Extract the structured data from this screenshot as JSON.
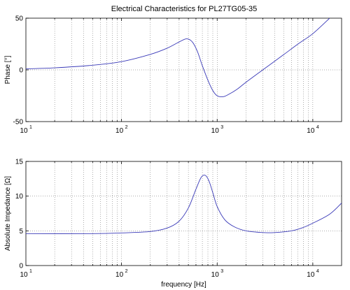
{
  "figure": {
    "title": "Electrical Characteristics for PL27TG05-35"
  },
  "chart_data": [
    {
      "type": "line",
      "ylabel": "Phase [°]",
      "xlabel": "",
      "xscale": "log",
      "xlim": [
        10,
        20000
      ],
      "ylim": [
        -50,
        50
      ],
      "yticks": [
        -50,
        0,
        50
      ],
      "xtick_labels": [
        {
          "base": "10",
          "exp": "1"
        },
        {
          "base": "10",
          "exp": "2"
        },
        {
          "base": "10",
          "exp": "3"
        },
        {
          "base": "10",
          "exp": "4"
        }
      ],
      "grid": true,
      "series": [
        {
          "color": "#3a3ab8",
          "x": [
            10,
            20,
            50,
            100,
            200,
            300,
            400,
            480,
            550,
            620,
            700,
            800,
            900,
            1000,
            1150,
            1300,
            1600,
            2000,
            3000,
            5000,
            7000,
            10000,
            15000
          ],
          "y": [
            1,
            2,
            4.5,
            8,
            15,
            21,
            27,
            30,
            27,
            18,
            4,
            -10,
            -20,
            -25,
            -26,
            -24,
            -19,
            -12,
            0,
            15,
            25,
            35,
            50
          ]
        }
      ]
    },
    {
      "type": "line",
      "ylabel": "Absolute Impedance [Ω]",
      "xlabel": "frequency [Hz]",
      "xscale": "log",
      "xlim": [
        10,
        20000
      ],
      "ylim": [
        0,
        15
      ],
      "yticks": [
        0,
        5,
        10,
        15
      ],
      "xtick_labels": [
        {
          "base": "10",
          "exp": "1"
        },
        {
          "base": "10",
          "exp": "2"
        },
        {
          "base": "10",
          "exp": "3"
        },
        {
          "base": "10",
          "exp": "4"
        }
      ],
      "grid": true,
      "series": [
        {
          "color": "#3a3ab8",
          "x": [
            10,
            50,
            100,
            200,
            300,
            400,
            500,
            600,
            680,
            750,
            820,
            900,
            1000,
            1200,
            1500,
            2000,
            3000,
            4000,
            6000,
            8000,
            10000,
            15000,
            20000
          ],
          "y": [
            4.6,
            4.6,
            4.7,
            4.9,
            5.4,
            6.4,
            8.3,
            11,
            12.7,
            13,
            12.2,
            10.5,
            8.5,
            6.6,
            5.6,
            5.0,
            4.75,
            4.75,
            5.0,
            5.5,
            6.1,
            7.4,
            9.0
          ]
        }
      ]
    }
  ]
}
